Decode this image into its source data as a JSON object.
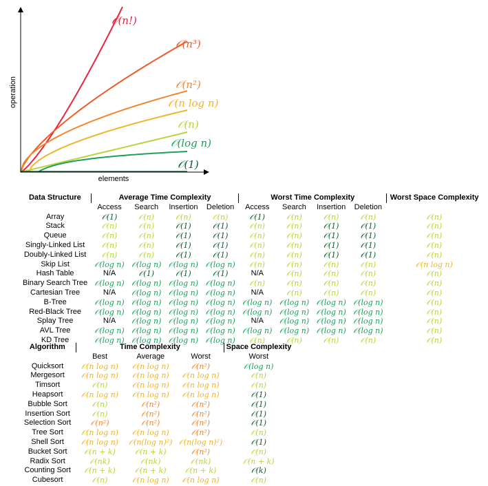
{
  "colors": {
    "n_fact": "#e8243a",
    "n_cube": "#ee5a2a",
    "n_sq": "#f0862e",
    "n_log_n": "#f0b428",
    "n": "#b8d43a",
    "log_n": "#1aa05a",
    "one": "#0d5a2e",
    "text": "#000000"
  },
  "complexity_colors": {
    "O(1)": "one",
    "O(log n)": "log_n",
    "O(n)": "n",
    "O(n log n)": "n_log_n",
    "O(n^2)": "n_sq",
    "O(n(log n)^2)": "n_log_n",
    "O(n+k)": "n",
    "O(nk)": "n",
    "O(k)": "one",
    "N/A": "text"
  },
  "chart_data": {
    "type": "line",
    "xlabel": "elements",
    "ylabel": "operation",
    "series": [
      {
        "name": "𝒪(n!)",
        "color_key": "n_fact"
      },
      {
        "name": "𝒪(n³)",
        "color_key": "n_cube"
      },
      {
        "name": "𝒪(n²)",
        "color_key": "n_sq"
      },
      {
        "name": "𝒪(n log n)",
        "color_key": "n_log_n"
      },
      {
        "name": "𝒪(n)",
        "color_key": "n"
      },
      {
        "name": "𝒪(log n)",
        "color_key": "log_n"
      },
      {
        "name": "𝒪(1)",
        "color_key": "one"
      }
    ]
  },
  "ds_table": {
    "headers": {
      "data_structure": "Data Structure",
      "avg": "Average Time Complexity",
      "worst": "Worst Time Complexity",
      "space": "Worst Space Complexity"
    },
    "ops": [
      "Access",
      "Search",
      "Insertion",
      "Deletion"
    ],
    "rows": [
      {
        "name": "Array",
        "avg": [
          "𝒪(1)",
          "𝒪(n)",
          "𝒪(n)",
          "𝒪(n)"
        ],
        "worst": [
          "𝒪(1)",
          "𝒪(n)",
          "𝒪(n)",
          "𝒪(n)"
        ],
        "space": "𝒪(n)"
      },
      {
        "name": "Stack",
        "avg": [
          "𝒪(n)",
          "𝒪(n)",
          "𝒪(1)",
          "𝒪(1)"
        ],
        "worst": [
          "𝒪(n)",
          "𝒪(n)",
          "𝒪(1)",
          "𝒪(1)"
        ],
        "space": "𝒪(n)"
      },
      {
        "name": "Queue",
        "avg": [
          "𝒪(n)",
          "𝒪(n)",
          "𝒪(1)",
          "𝒪(1)"
        ],
        "worst": [
          "𝒪(n)",
          "𝒪(n)",
          "𝒪(1)",
          "𝒪(1)"
        ],
        "space": "𝒪(n)"
      },
      {
        "name": "Singly-Linked List",
        "avg": [
          "𝒪(n)",
          "𝒪(n)",
          "𝒪(1)",
          "𝒪(1)"
        ],
        "worst": [
          "𝒪(n)",
          "𝒪(n)",
          "𝒪(1)",
          "𝒪(1)"
        ],
        "space": "𝒪(n)"
      },
      {
        "name": "Doubly-Linked List",
        "avg": [
          "𝒪(n)",
          "𝒪(n)",
          "𝒪(1)",
          "𝒪(1)"
        ],
        "worst": [
          "𝒪(n)",
          "𝒪(n)",
          "𝒪(1)",
          "𝒪(1)"
        ],
        "space": "𝒪(n)"
      },
      {
        "name": "Skip List",
        "avg": [
          "𝒪(log n)",
          "𝒪(log n)",
          "𝒪(log n)",
          "𝒪(log n)"
        ],
        "worst": [
          "𝒪(n)",
          "𝒪(n)",
          "𝒪(n)",
          "𝒪(n)"
        ],
        "space": "𝒪(n log n)"
      },
      {
        "name": "Hash Table",
        "avg": [
          "N/A",
          "𝒪(1)",
          "𝒪(1)",
          "𝒪(1)"
        ],
        "worst": [
          "N/A",
          "𝒪(n)",
          "𝒪(n)",
          "𝒪(n)"
        ],
        "space": "𝒪(n)"
      },
      {
        "name": "Binary Search Tree",
        "avg": [
          "𝒪(log n)",
          "𝒪(log n)",
          "𝒪(log n)",
          "𝒪(log n)"
        ],
        "worst": [
          "𝒪(n)",
          "𝒪(n)",
          "𝒪(n)",
          "𝒪(n)"
        ],
        "space": "𝒪(n)"
      },
      {
        "name": "Cartesian Tree",
        "avg": [
          "N/A",
          "𝒪(log n)",
          "𝒪(log n)",
          "𝒪(log n)"
        ],
        "worst": [
          "N/A",
          "𝒪(n)",
          "𝒪(n)",
          "𝒪(n)"
        ],
        "space": "𝒪(n)"
      },
      {
        "name": "B-Tree",
        "avg": [
          "𝒪(log n)",
          "𝒪(log n)",
          "𝒪(log n)",
          "𝒪(log n)"
        ],
        "worst": [
          "𝒪(log n)",
          "𝒪(log n)",
          "𝒪(log n)",
          "𝒪(log n)"
        ],
        "space": "𝒪(n)"
      },
      {
        "name": "Red-Black Tree",
        "avg": [
          "𝒪(log n)",
          "𝒪(log n)",
          "𝒪(log n)",
          "𝒪(log n)"
        ],
        "worst": [
          "𝒪(log n)",
          "𝒪(log n)",
          "𝒪(log n)",
          "𝒪(log n)"
        ],
        "space": "𝒪(n)"
      },
      {
        "name": "Splay Tree",
        "avg": [
          "N/A",
          "𝒪(log n)",
          "𝒪(log n)",
          "𝒪(log n)"
        ],
        "worst": [
          "N/A",
          "𝒪(log n)",
          "𝒪(log n)",
          "𝒪(log n)"
        ],
        "space": "𝒪(n)"
      },
      {
        "name": "AVL Tree",
        "avg": [
          "𝒪(log n)",
          "𝒪(log n)",
          "𝒪(log n)",
          "𝒪(log n)"
        ],
        "worst": [
          "𝒪(log n)",
          "𝒪(log n)",
          "𝒪(log n)",
          "𝒪(log n)"
        ],
        "space": "𝒪(n)"
      },
      {
        "name": "KD Tree",
        "avg": [
          "𝒪(log n)",
          "𝒪(log n)",
          "𝒪(log n)",
          "𝒪(log n)"
        ],
        "worst": [
          "𝒪(n)",
          "𝒪(n)",
          "𝒪(n)",
          "𝒪(n)"
        ],
        "space": "𝒪(n)"
      }
    ]
  },
  "alg_table": {
    "headers": {
      "algorithm": "Algorithm",
      "time": "Time Complexity",
      "space": "Space Complexity"
    },
    "cases": [
      "Best",
      "Average",
      "Worst"
    ],
    "space_case": "Worst",
    "rows": [
      {
        "name": "Quicksort",
        "time": [
          "𝒪(n log n)",
          "𝒪(n log n)",
          "𝒪(n²)"
        ],
        "space": "𝒪(log n)"
      },
      {
        "name": "Mergesort",
        "time": [
          "𝒪(n log n)",
          "𝒪(n log n)",
          "𝒪(n log n)"
        ],
        "space": "𝒪(n)"
      },
      {
        "name": "Timsort",
        "time": [
          "𝒪(n)",
          "𝒪(n log n)",
          "𝒪(n log n)"
        ],
        "space": "𝒪(n)"
      },
      {
        "name": "Heapsort",
        "time": [
          "𝒪(n log n)",
          "𝒪(n log n)",
          "𝒪(n log n)"
        ],
        "space": "𝒪(1)"
      },
      {
        "name": "Bubble Sort",
        "time": [
          "𝒪(n)",
          "𝒪(n²)",
          "𝒪(n²)"
        ],
        "space": "𝒪(1)"
      },
      {
        "name": "Insertion Sort",
        "time": [
          "𝒪(n)",
          "𝒪(n²)",
          "𝒪(n²)"
        ],
        "space": "𝒪(1)"
      },
      {
        "name": "Selection Sort",
        "time": [
          "𝒪(n²)",
          "𝒪(n²)",
          "𝒪(n²)"
        ],
        "space": "𝒪(1)"
      },
      {
        "name": "Tree Sort",
        "time": [
          "𝒪(n log n)",
          "𝒪(n log n)",
          "𝒪(n²)"
        ],
        "space": "𝒪(n)"
      },
      {
        "name": "Shell Sort",
        "time": [
          "𝒪(n log n)",
          "𝒪(n(log n)²)",
          "𝒪(n(log n)²)"
        ],
        "space": "𝒪(1)"
      },
      {
        "name": "Bucket Sort",
        "time": [
          "𝒪(n + k)",
          "𝒪(n + k)",
          "𝒪(n²)"
        ],
        "space": "𝒪(n)"
      },
      {
        "name": "Radix Sort",
        "time": [
          "𝒪(nk)",
          "𝒪(nk)",
          "𝒪(nk)"
        ],
        "space": "𝒪(n + k)"
      },
      {
        "name": "Counting Sort",
        "time": [
          "𝒪(n + k)",
          "𝒪(n + k)",
          "𝒪(n + k)"
        ],
        "space": "𝒪(k)"
      },
      {
        "name": "Cubesort",
        "time": [
          "𝒪(n)",
          "𝒪(n log n)",
          "𝒪(n log n)"
        ],
        "space": "𝒪(n)"
      }
    ]
  }
}
